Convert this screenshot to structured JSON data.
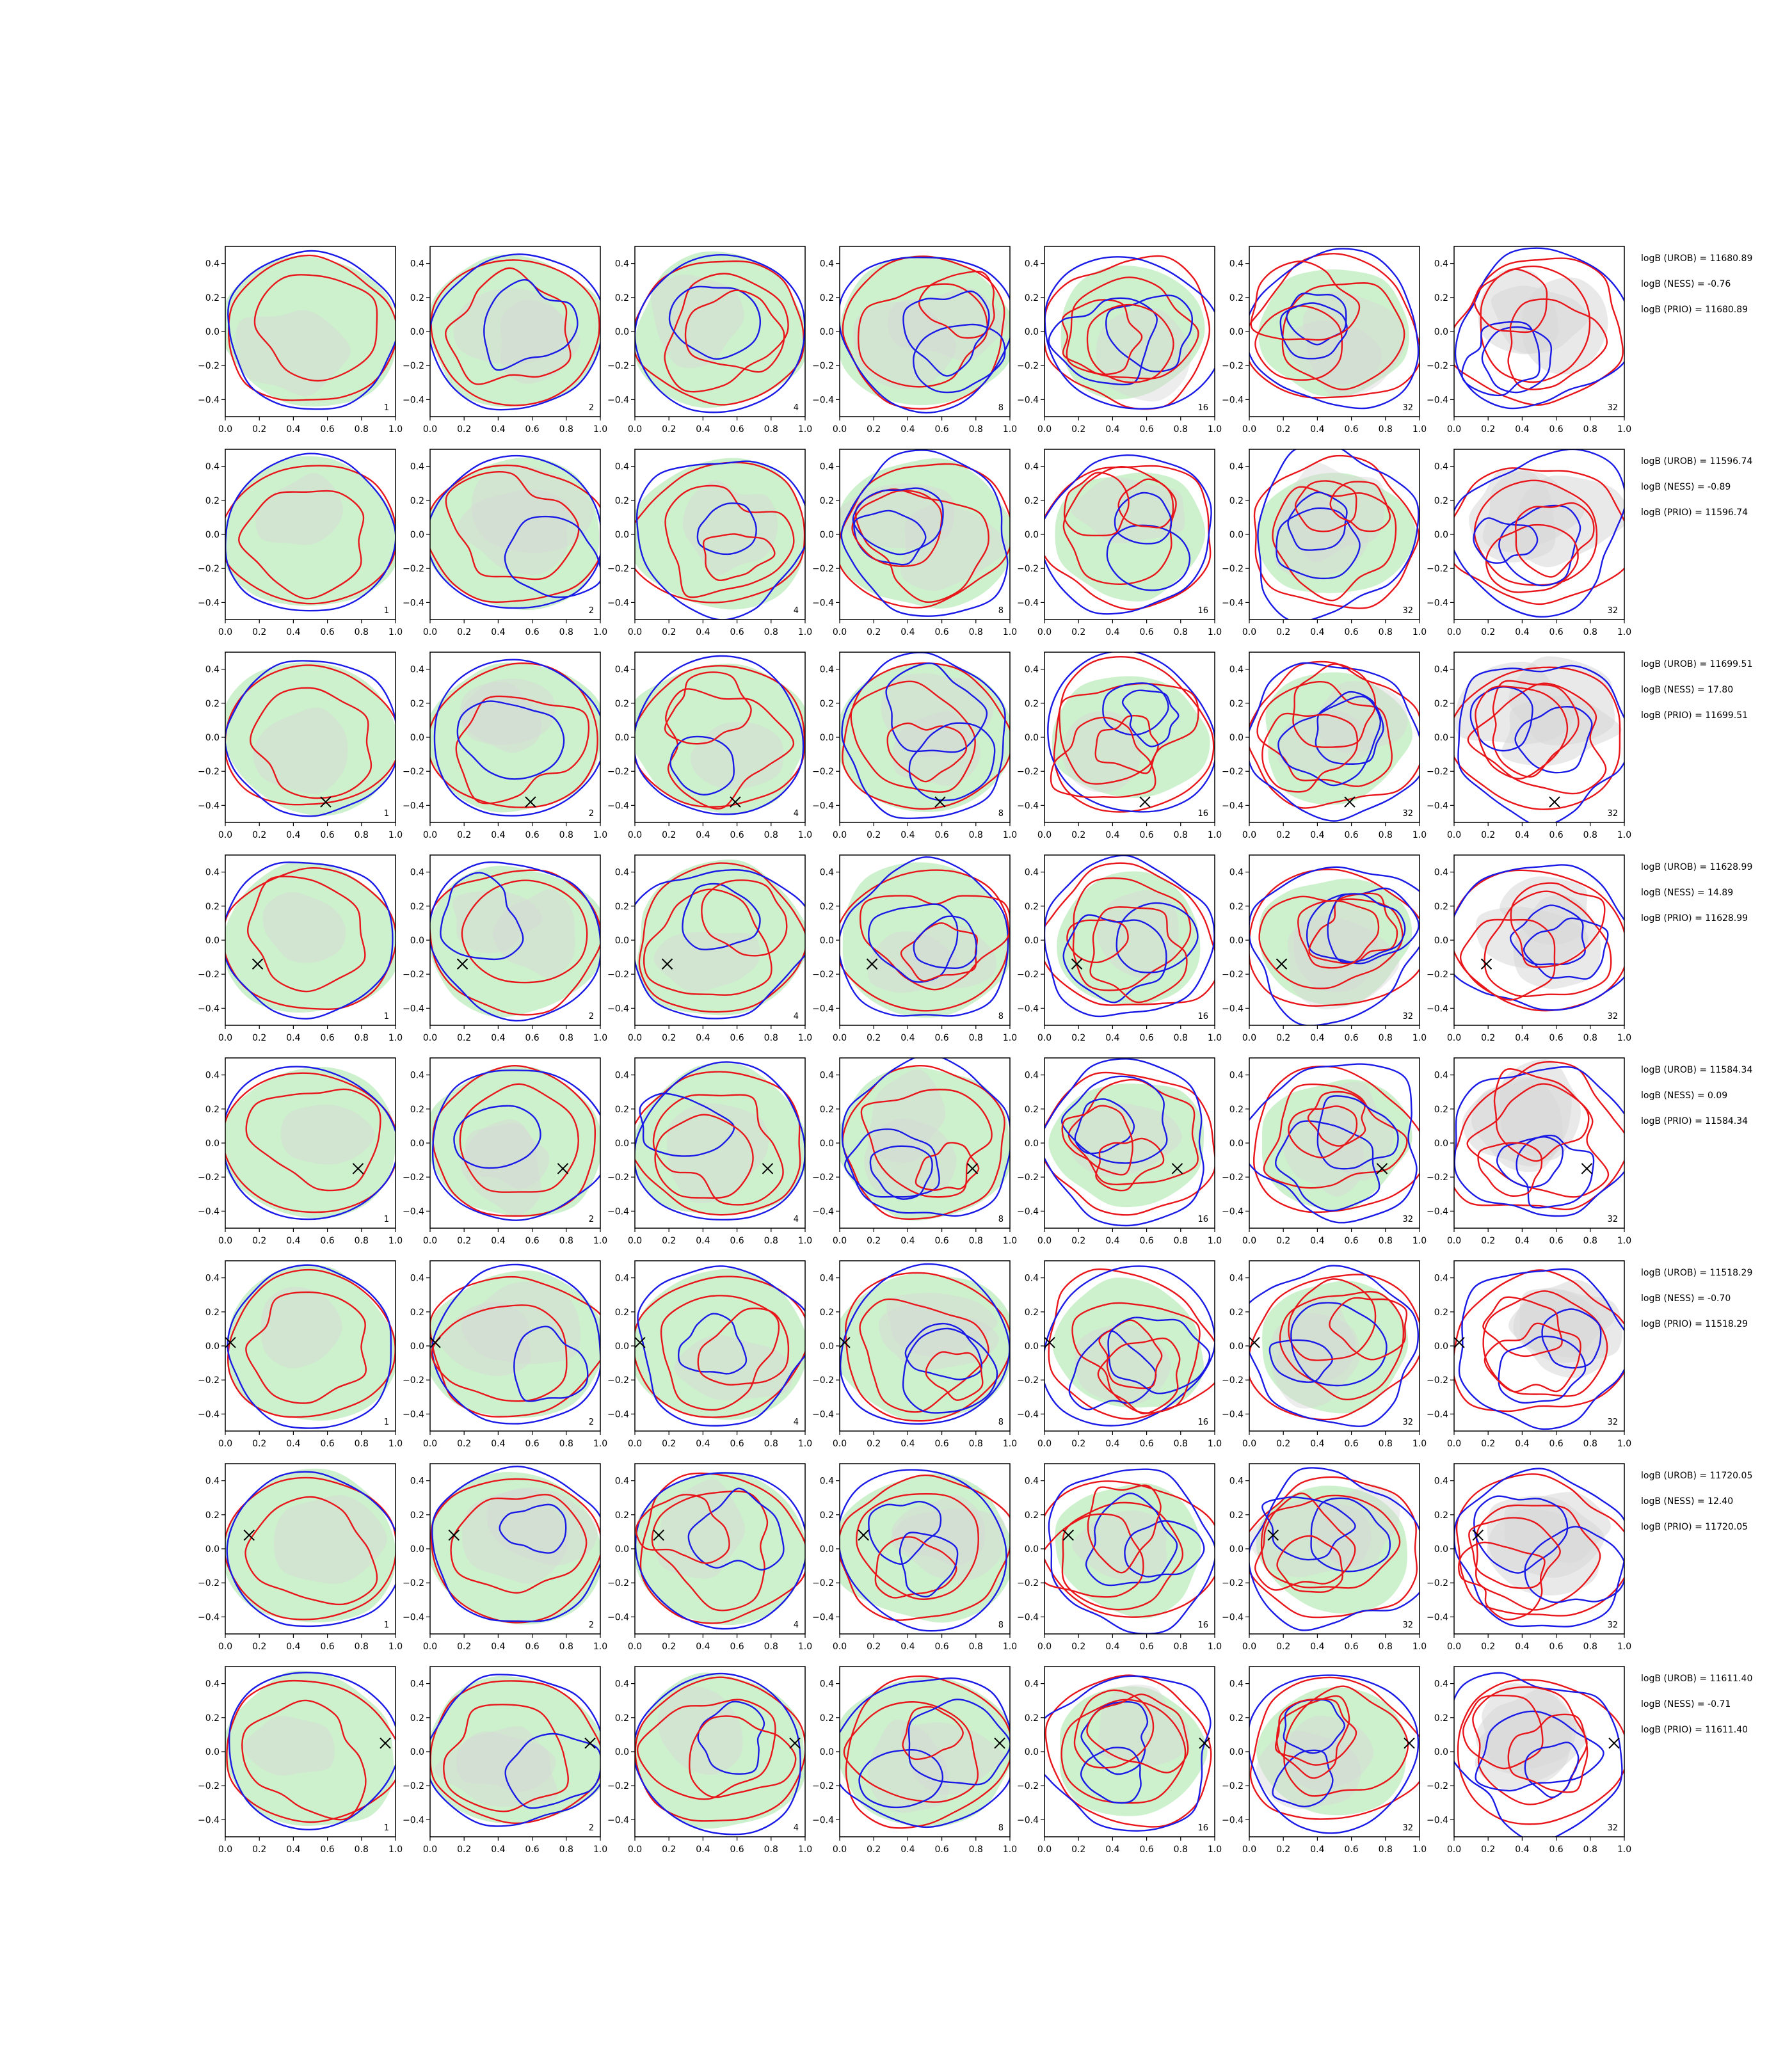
{
  "chart_data": {
    "type": "contour-grid",
    "rows": 8,
    "columns": 7,
    "panel_labels": [
      "1",
      "2",
      "4",
      "8",
      "16",
      "32",
      "32"
    ],
    "xlim": [
      0.0,
      1.0
    ],
    "ylim": [
      -0.5,
      0.5
    ],
    "x_ticks": [
      "0.0",
      "0.2",
      "0.4",
      "0.6",
      "0.8",
      "1.0"
    ],
    "y_ticks": [
      "0.4",
      "0.2",
      "0.0",
      "−0.2",
      "−0.4"
    ],
    "series_colors": {
      "red_contour": "#e8161b",
      "blue_contour": "#1a1ae6",
      "green_fill": "#cdf0cd",
      "grey_fill": "#d7d7d7",
      "marker": "#000000"
    },
    "row_data": [
      {
        "annotations": [
          "logB (UROB) = 11680.89",
          "logB (NESS) = -0.76",
          "logB (PRIO) = 11680.89"
        ],
        "marker": null
      },
      {
        "annotations": [
          "logB (UROB) = 11596.74",
          "logB (NESS) = -0.89",
          "logB (PRIO) = 11596.74"
        ],
        "marker": null
      },
      {
        "annotations": [
          "logB (UROB) = 11699.51",
          "logB (NESS) = 17.80",
          "logB (PRIO) = 11699.51"
        ],
        "marker": [
          0.59,
          -0.38
        ]
      },
      {
        "annotations": [
          "logB (UROB) = 11628.99",
          "logB (NESS) = 14.89",
          "logB (PRIO) = 11628.99"
        ],
        "marker": [
          0.19,
          -0.14
        ]
      },
      {
        "annotations": [
          "logB (UROB) = 11584.34",
          "logB (NESS) = 0.09",
          "logB (PRIO) = 11584.34"
        ],
        "marker": [
          0.78,
          -0.15
        ]
      },
      {
        "annotations": [
          "logB (UROB) = 11518.29",
          "logB (NESS) = -0.70",
          "logB (PRIO) = 11518.29"
        ],
        "marker": [
          0.03,
          0.02
        ]
      },
      {
        "annotations": [
          "logB (UROB) = 11720.05",
          "logB (NESS) = 12.40",
          "logB (PRIO) = 11720.05"
        ],
        "marker": [
          0.14,
          0.08
        ]
      },
      {
        "annotations": [
          "logB (UROB) = 11611.40",
          "logB (NESS) = -0.71",
          "logB (PRIO) = 11611.40"
        ],
        "marker": [
          0.94,
          0.05
        ]
      }
    ]
  }
}
